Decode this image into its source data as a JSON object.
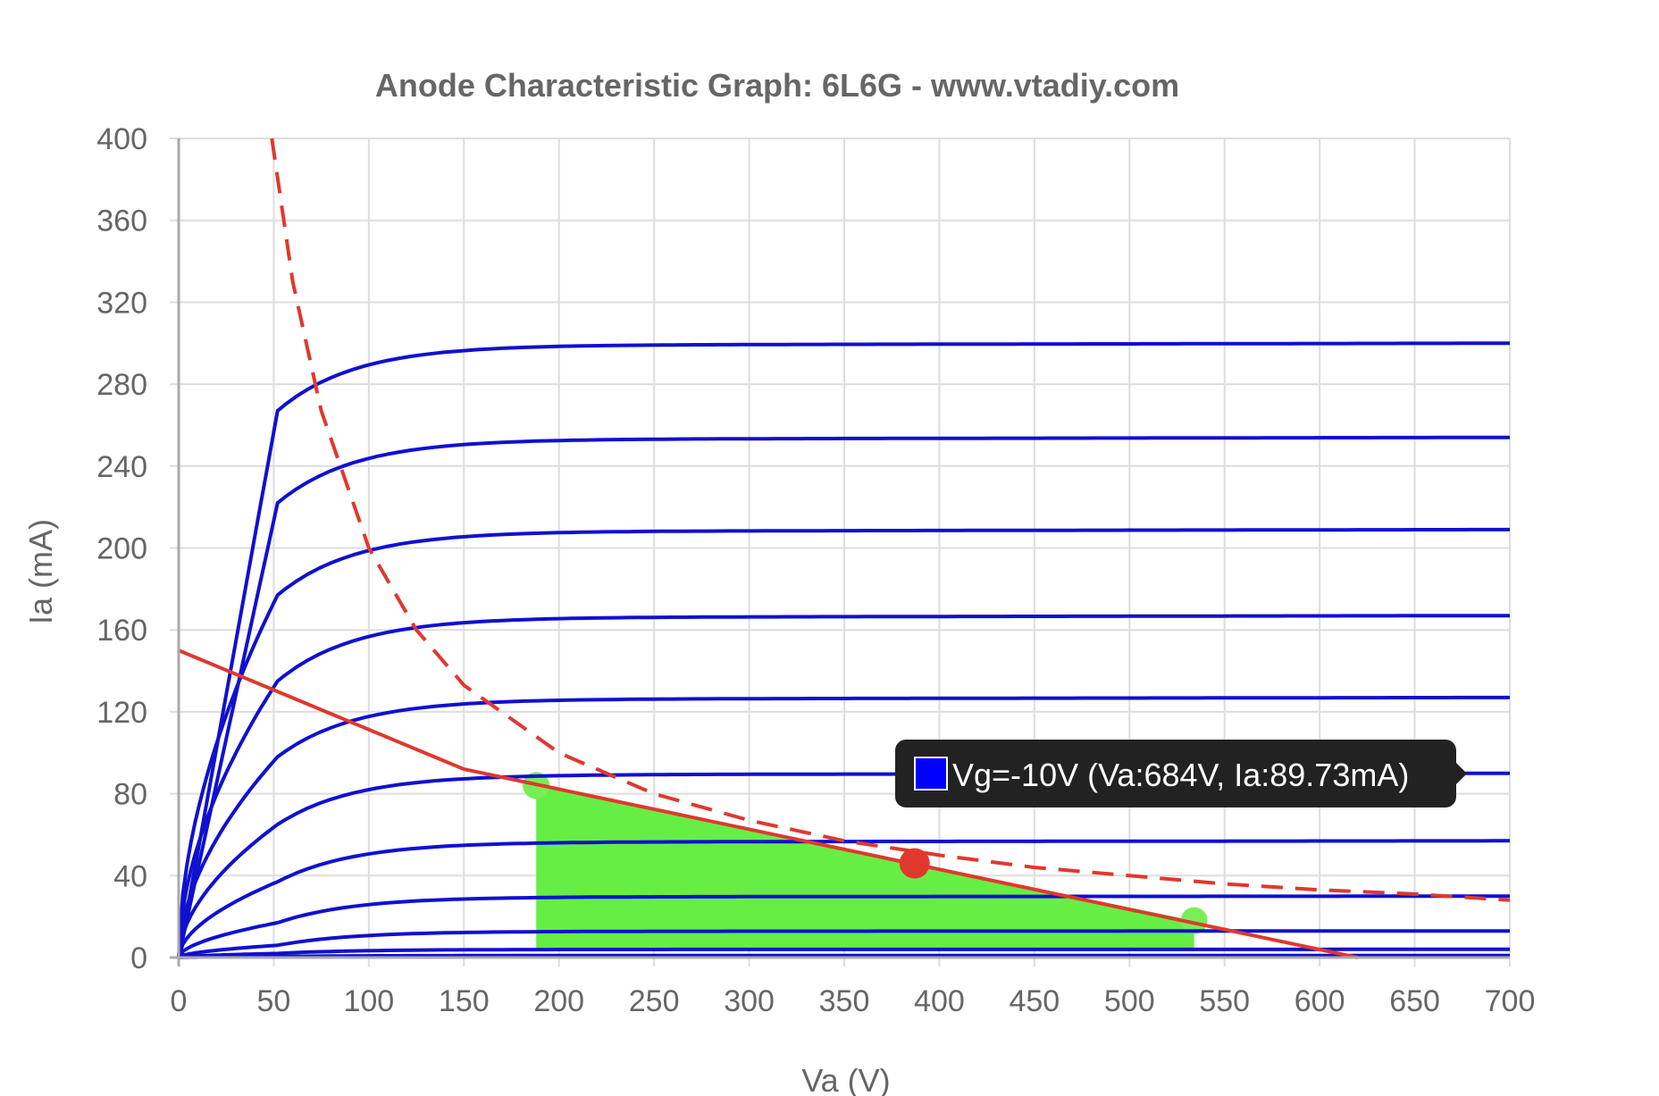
{
  "chart_data": {
    "type": "line",
    "title": "Anode Characteristic Graph: 6L6G - www.vtadiy.com",
    "xlabel": "Va (V)",
    "ylabel": "Ia (mA)",
    "xlim": [
      0,
      700
    ],
    "ylim": [
      0,
      400
    ],
    "xticks": [
      "0",
      "50",
      "100",
      "150",
      "200",
      "250",
      "300",
      "350",
      "400",
      "450",
      "500",
      "550",
      "600",
      "650",
      "700"
    ],
    "yticks": [
      "0",
      "40",
      "80",
      "120",
      "160",
      "200",
      "240",
      "280",
      "320",
      "360",
      "400"
    ],
    "grid": true,
    "curves": {
      "color": "#1010d0",
      "final_values": [
        300,
        254,
        209,
        167,
        127,
        90,
        57,
        30,
        13,
        4,
        1
      ],
      "knee_values": [
        267,
        222,
        177,
        135,
        98,
        65,
        37,
        17,
        6,
        2,
        0.5
      ]
    },
    "load_line": {
      "color": "#e0382e",
      "points": [
        [
          0,
          150
        ],
        [
          150,
          92
        ],
        [
          620,
          0
        ]
      ]
    },
    "power_curve": {
      "color": "#e0382e",
      "style": "dashed",
      "points": [
        [
          49,
          400
        ],
        [
          60,
          330
        ],
        [
          75,
          267
        ],
        [
          100,
          200
        ],
        [
          125,
          160
        ],
        [
          150,
          133
        ],
        [
          200,
          100
        ],
        [
          250,
          80
        ],
        [
          300,
          67
        ],
        [
          350,
          57
        ],
        [
          400,
          50
        ],
        [
          450,
          44
        ],
        [
          500,
          40
        ],
        [
          550,
          36
        ],
        [
          600,
          33
        ],
        [
          650,
          31
        ],
        [
          700,
          28
        ]
      ]
    },
    "operating_point": {
      "va": 387,
      "ia": 46,
      "color": "#e0382e"
    },
    "swing_area": {
      "color": "#66ee44",
      "points": [
        [
          188,
          84
        ],
        [
          534,
          18
        ]
      ]
    },
    "tooltip": {
      "text": "Vg=-10V (Va:684V, Ia:89.73mA)",
      "swatch_color": "#0000ff",
      "background": "#222222"
    }
  }
}
